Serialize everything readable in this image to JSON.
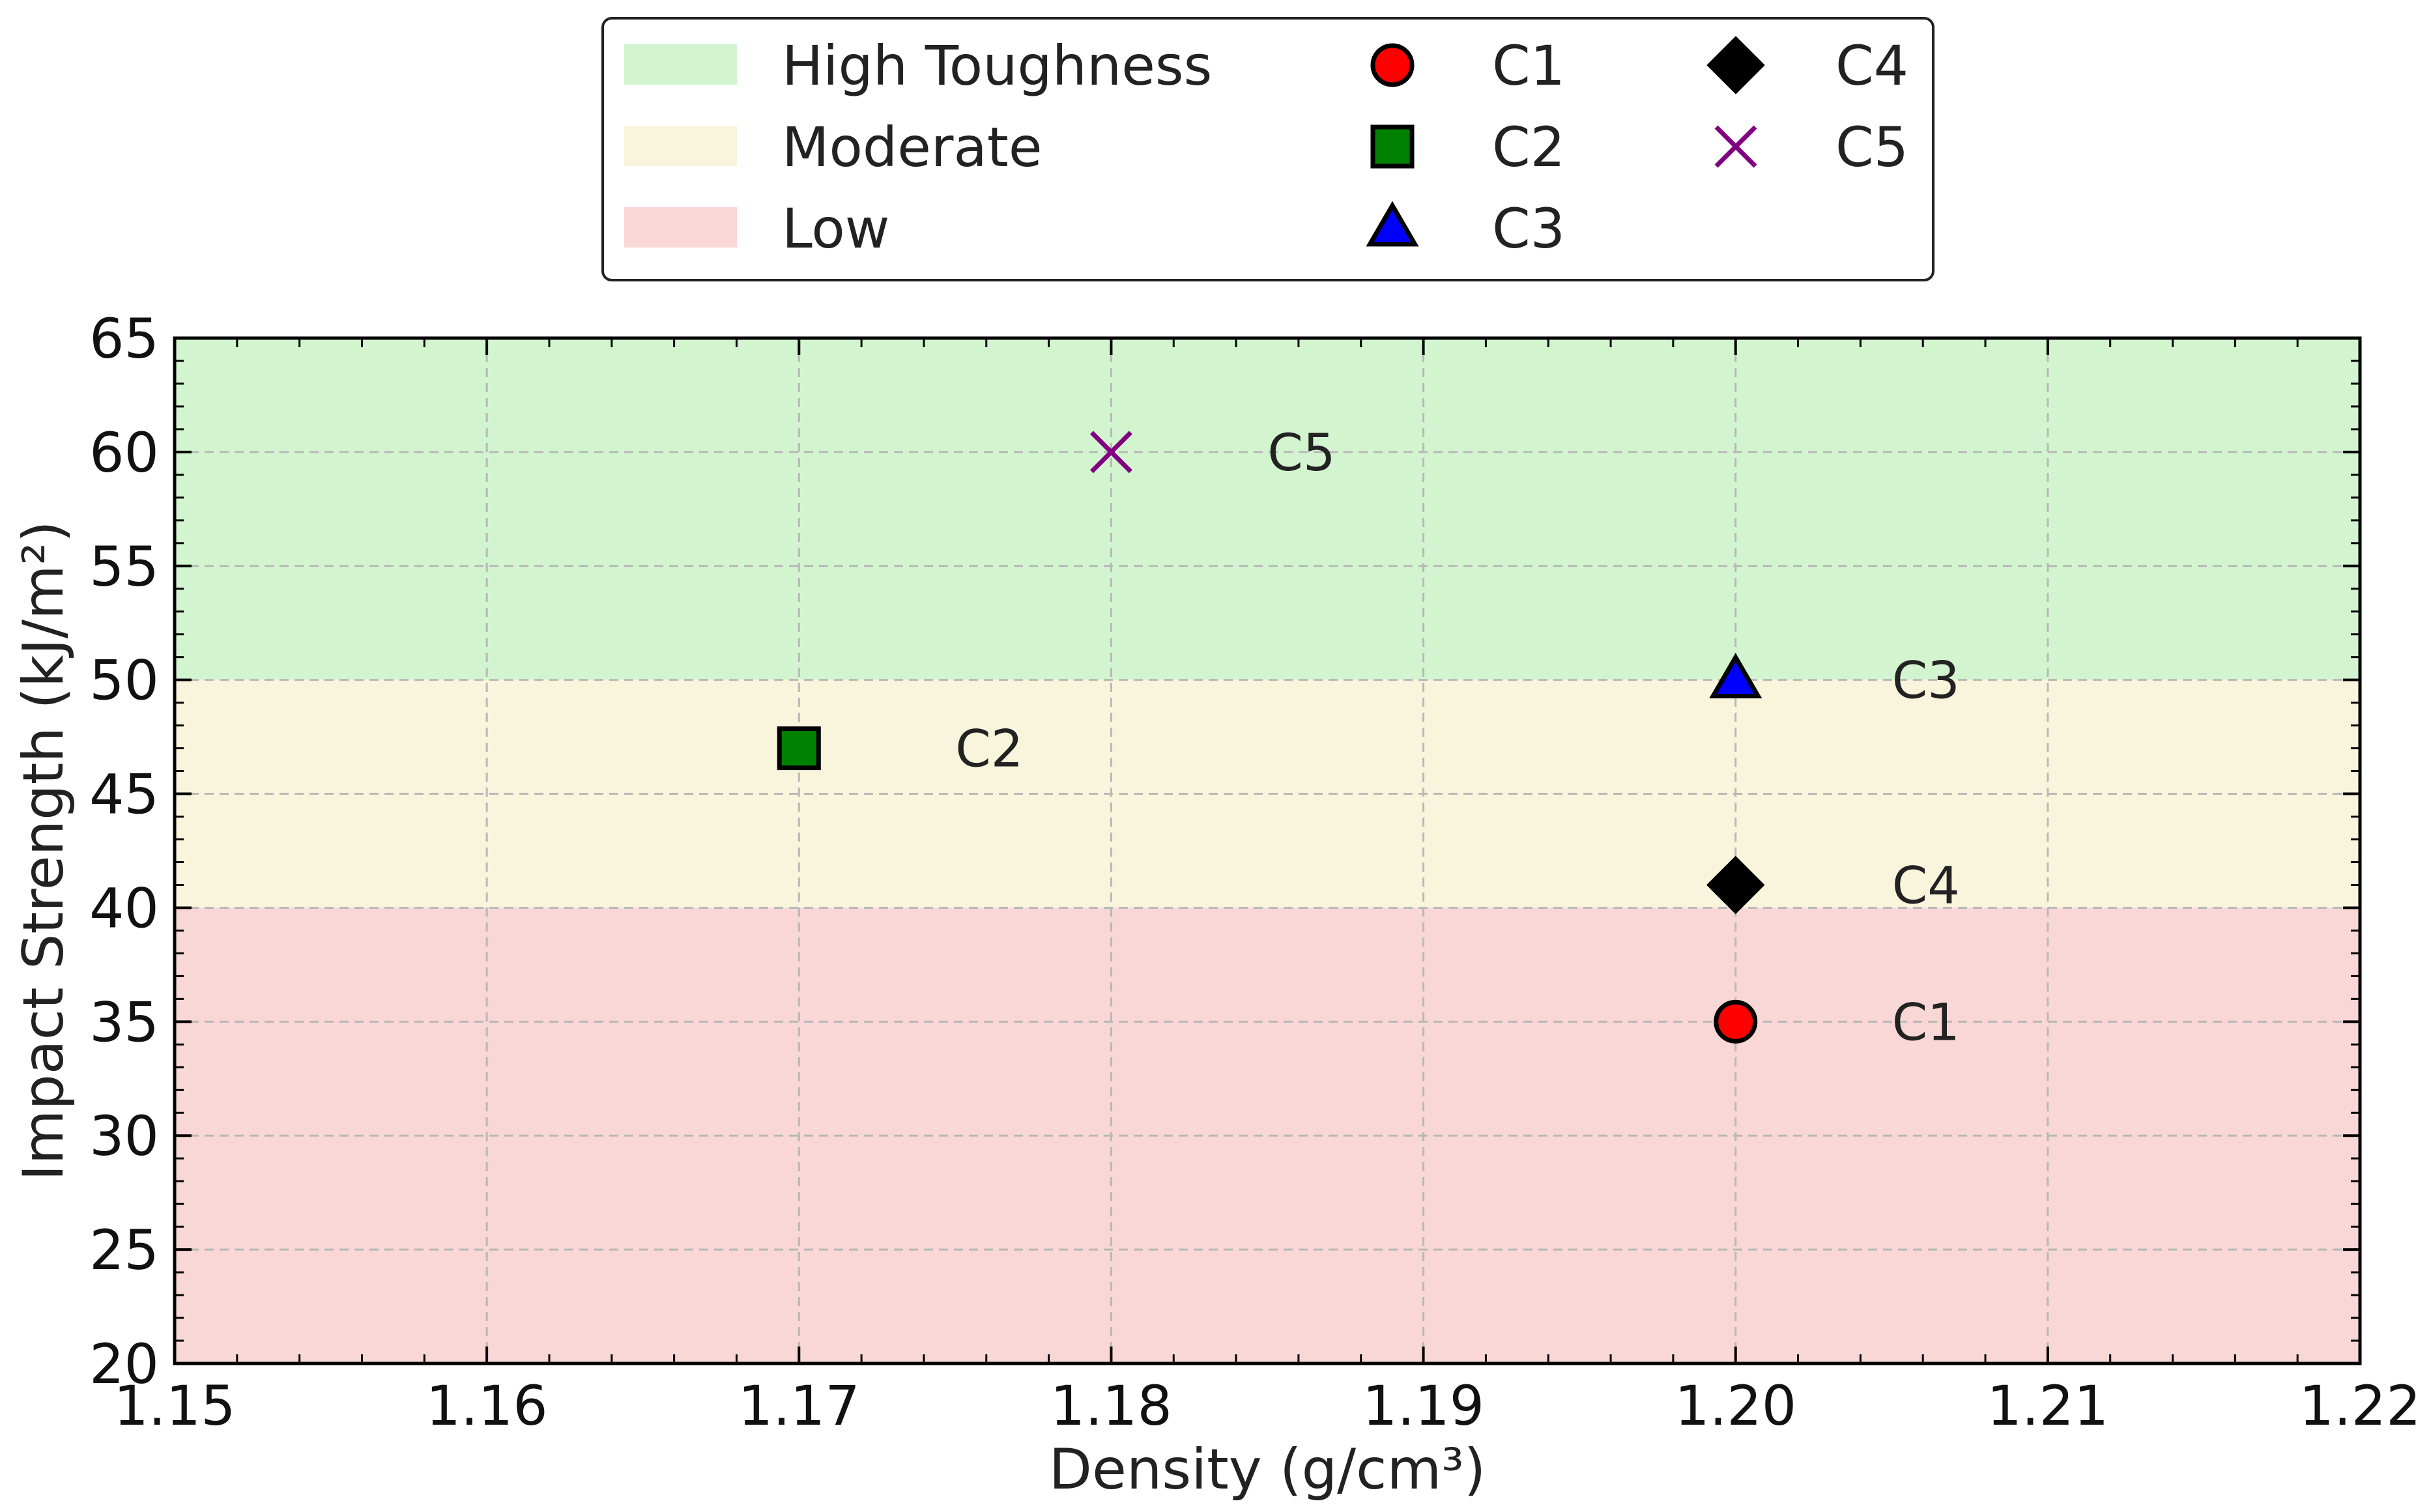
{
  "chart_data": {
    "type": "scatter",
    "xlabel": "Density (g/cm³)",
    "ylabel": "Impact Strength (kJ/m²)",
    "xlim": [
      1.15,
      1.22
    ],
    "ylim": [
      20,
      65
    ],
    "x_ticks": [
      "1.15",
      "1.16",
      "1.17",
      "1.18",
      "1.19",
      "1.20",
      "1.21",
      "1.22"
    ],
    "x_tick_values": [
      1.15,
      1.16,
      1.17,
      1.18,
      1.19,
      1.2,
      1.21,
      1.22
    ],
    "y_ticks": [
      "20",
      "25",
      "30",
      "35",
      "40",
      "45",
      "50",
      "55",
      "60",
      "65"
    ],
    "y_tick_values": [
      20,
      25,
      30,
      35,
      40,
      45,
      50,
      55,
      60,
      65
    ],
    "grid": true,
    "legend_position": "top-center",
    "regions": [
      {
        "label": "High Toughness",
        "y_min": 50,
        "y_max": 65,
        "color": "#d2f5d0"
      },
      {
        "label": "Moderate",
        "y_min": 40,
        "y_max": 50,
        "color": "#f9f4dc"
      },
      {
        "label": "Low",
        "y_min": 20,
        "y_max": 40,
        "color": "#f8d7d6"
      }
    ],
    "series": [
      {
        "name": "C1",
        "x": 1.2,
        "y": 35,
        "marker": "circle",
        "color": "#ff0000"
      },
      {
        "name": "C2",
        "x": 1.17,
        "y": 47,
        "marker": "square",
        "color": "#008000"
      },
      {
        "name": "C3",
        "x": 1.2,
        "y": 50,
        "marker": "triangle",
        "color": "#0000ff"
      },
      {
        "name": "C4",
        "x": 1.2,
        "y": 41,
        "marker": "diamond",
        "color": "#000000"
      },
      {
        "name": "C5",
        "x": 1.18,
        "y": 60,
        "marker": "x",
        "color": "#800080"
      }
    ],
    "legend_order": [
      "C1",
      "C2",
      "C3",
      "C4",
      "C5"
    ]
  }
}
